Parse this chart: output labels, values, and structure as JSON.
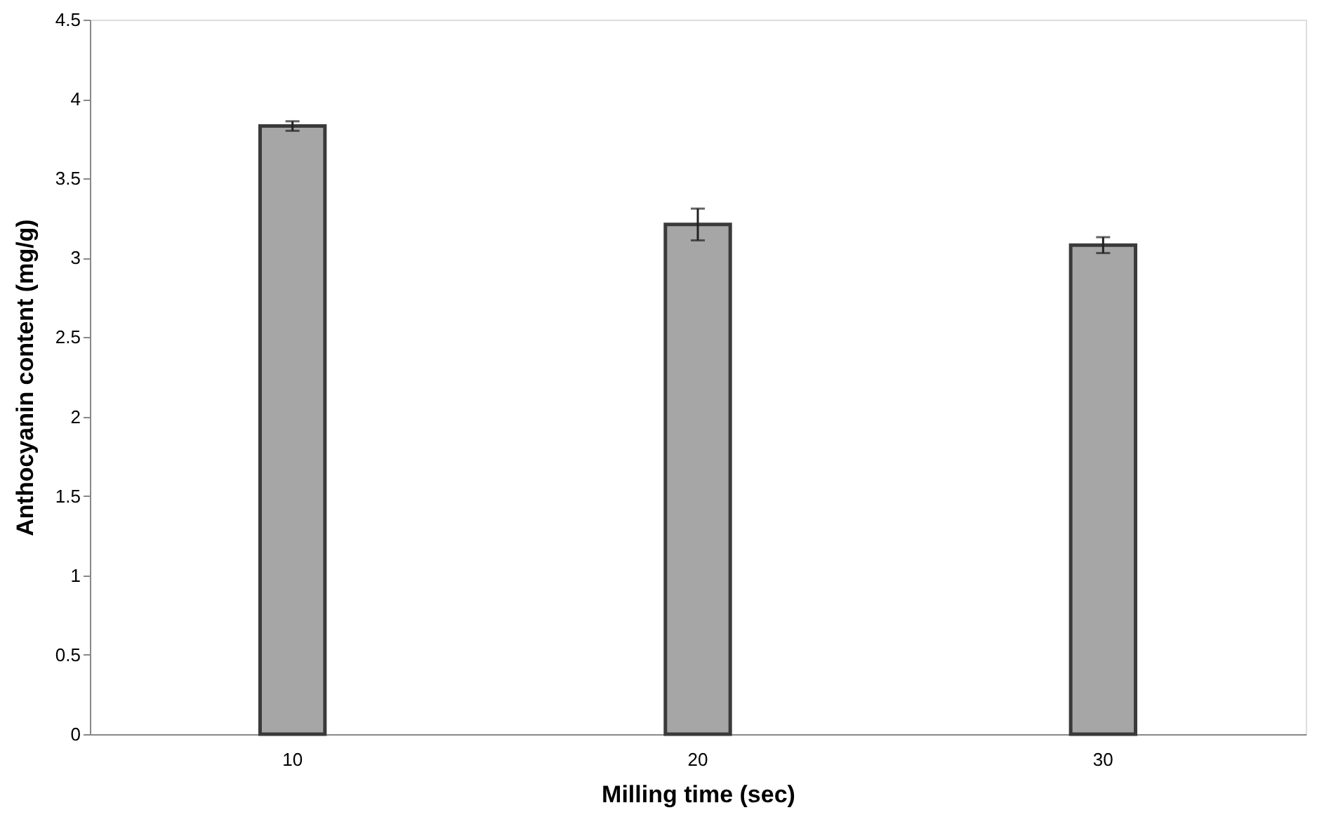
{
  "chart_data": {
    "type": "bar",
    "xlabel": "Milling time (sec)",
    "ylabel": "Anthocyanin content (mg/g)",
    "categories": [
      "10",
      "20",
      "30"
    ],
    "series": [
      {
        "color": "#a6a6a6",
        "values": [
          3.83,
          3.21,
          3.08
        ],
        "errors": [
          0.03,
          0.1,
          0.05
        ]
      }
    ],
    "ylim": [
      0,
      4.5
    ],
    "yticks": [
      0,
      0.5,
      1,
      1.5,
      2,
      2.5,
      3,
      3.5,
      4,
      4.5
    ],
    "grid": false
  }
}
